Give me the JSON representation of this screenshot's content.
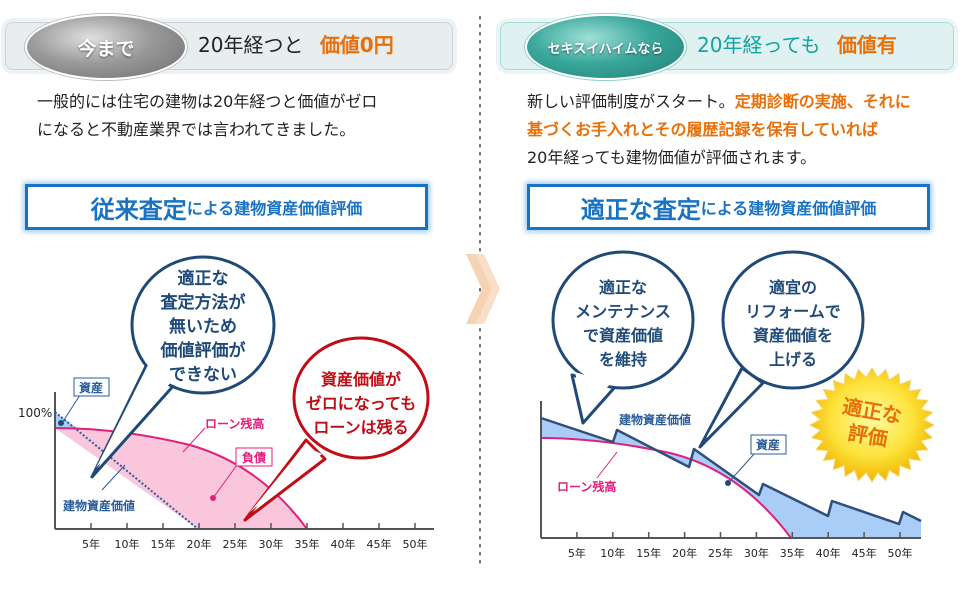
{
  "left": {
    "badge": "今まで",
    "headline_prefix": "20年経つと",
    "headline_emphasis": "価値0円",
    "description_lines": [
      "一般的には住宅の建物は20年経つと価値がゼロ",
      "になると不動産業界では言われてきました。"
    ],
    "title_emphasis": "従来査定",
    "title_rest": "による建物資産価値評価",
    "chart": {
      "y_label": "100%",
      "x_ticks": [
        "5年",
        "10年",
        "15年",
        "20年",
        "25年",
        "30年",
        "35年",
        "40年",
        "45年",
        "50年"
      ],
      "label_asset": "資産",
      "label_building_value": "建物資産価値",
      "label_loan": "ローン残高",
      "label_liability": "負債",
      "building_value_reaches_zero_year": 20,
      "loan_reaches_zero_year": 35
    },
    "bubble_blue_lines": [
      "適正な",
      "査定方法が",
      "無いため",
      "価値評価が",
      "できない"
    ],
    "bubble_red_lines": [
      "資産価値が",
      "ゼロになっても",
      "ローンは残る"
    ]
  },
  "right": {
    "badge": "セキスイハイムなら",
    "headline_prefix": "20年経っても",
    "headline_emphasis": "価値有",
    "description_line1_plain": "新しい評価制度がスタート。",
    "description_line1_highlight": "定期診断の実施、それに",
    "description_line2_highlight": "基づくお手入れとその履歴記録を保有していれば",
    "description_line3_plain": "20年経っても建物価値が評価されます。",
    "title_emphasis": "適正な査定",
    "title_rest": "による建物資産価値評価",
    "chart": {
      "x_ticks": [
        "5年",
        "10年",
        "15年",
        "20年",
        "25年",
        "30年",
        "35年",
        "40年",
        "45年",
        "50年"
      ],
      "label_building_value": "建物資産価値",
      "label_asset": "資産",
      "label_loan": "ローン残高",
      "loan_reaches_zero_year": 35,
      "renovation_years": [
        10,
        20,
        30,
        40,
        50
      ]
    },
    "bubble_1_lines": [
      "適正な",
      "メンテナンス",
      "で資産価値",
      "を維持"
    ],
    "bubble_2_lines": [
      "適宜の",
      "リフォームで",
      "資産価値を",
      "上げる"
    ],
    "starburst_lines": [
      "適正な",
      "評価"
    ]
  },
  "colors": {
    "orange": "#e8700a",
    "navy": "#1f4a78",
    "title_blue": "#1a73c2",
    "loan_pink": "#e0207a",
    "liability_fill": "#f9c6dc",
    "asset_fill": "#a9cdf7",
    "red": "#c00d16",
    "teal": "#13a3a0",
    "arrow_peach": "#f7d3b5"
  }
}
